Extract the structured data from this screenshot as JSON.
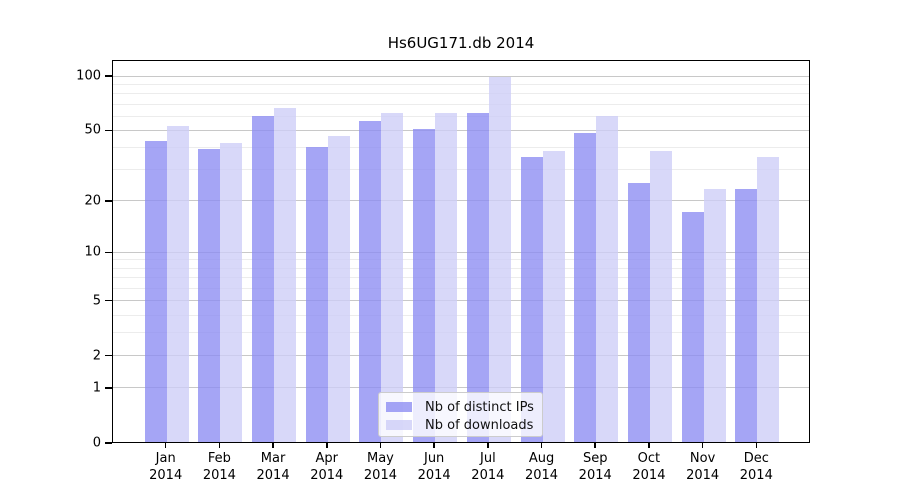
{
  "chart_data": {
    "type": "bar",
    "title": "Hs6UG171.db 2014",
    "year_label": "2014",
    "months": [
      "Jan",
      "Feb",
      "Mar",
      "Apr",
      "May",
      "Jun",
      "Jul",
      "Aug",
      "Sep",
      "Oct",
      "Nov",
      "Dec"
    ],
    "categories": [
      "Jan 2014",
      "Feb 2014",
      "Mar 2014",
      "Apr 2014",
      "May 2014",
      "Jun 2014",
      "Jul 2014",
      "Aug 2014",
      "Sep 2014",
      "Oct 2014",
      "Nov 2014",
      "Dec 2014"
    ],
    "series": [
      {
        "name": "Nb of distinct IPs",
        "color": "rgba(140,140,242,0.78)",
        "values": [
          43,
          39,
          59,
          40,
          56,
          50,
          62,
          35,
          48,
          25,
          17,
          23
        ]
      },
      {
        "name": "Nb of downloads",
        "color": "rgba(205,205,247,0.78)",
        "values": [
          52,
          42,
          66,
          46,
          62,
          62,
          97,
          38,
          59,
          38,
          23,
          35
        ]
      }
    ],
    "yscale": "log10(1+y)",
    "ylim": [
      0,
      122
    ],
    "yticks": [
      100,
      50,
      20,
      10,
      5,
      2,
      1,
      0
    ],
    "minor_gridlines": [
      3,
      4,
      6,
      7,
      8,
      9,
      30,
      40,
      60,
      70,
      80,
      90
    ],
    "grid": "on",
    "legend_position": "lower center",
    "colors": {
      "major_grid": "#c8c8c8",
      "minor_grid": "#ececec",
      "axis": "#000000",
      "legend_border": "#cccccc"
    }
  }
}
